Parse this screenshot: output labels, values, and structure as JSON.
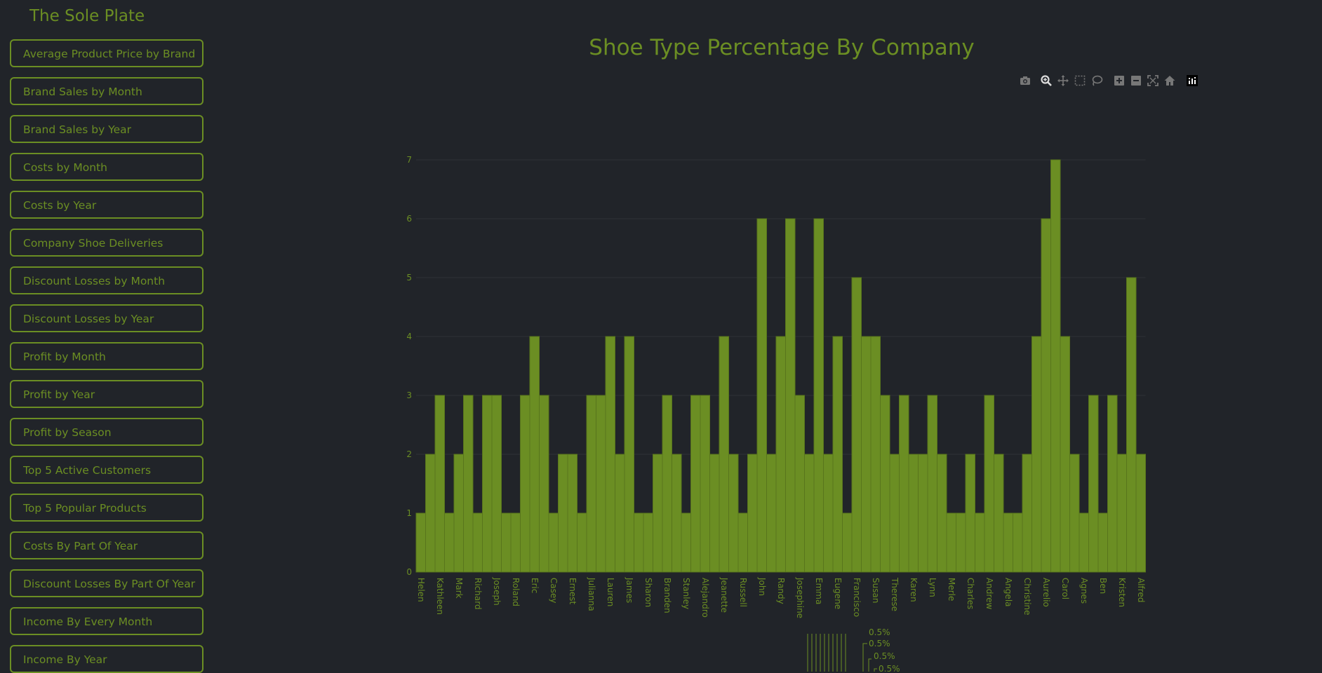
{
  "sidebar": {
    "brand": "The Sole Plate",
    "items": [
      "Average Product Price by Brand",
      "Brand Sales by Month",
      "Brand Sales by Year",
      "Costs by Month",
      "Costs by Year",
      "Company Shoe Deliveries",
      "Discount Losses by Month",
      "Discount Losses by Year",
      "Profit by Month",
      "Profit by Year",
      "Profit by Season",
      "Top 5 Active Customers",
      "Top 5 Popular Products",
      "Costs By Part Of Year",
      "Discount Losses By Part Of Year",
      "Income By Every Month",
      "Income By Year"
    ]
  },
  "main": {
    "title": "Shoe Type Percentage By Company"
  },
  "toolbar": {
    "icons": [
      "camera-icon",
      "zoom-icon",
      "pan-icon",
      "box-select-icon",
      "lasso-select-icon",
      "zoom-in-icon",
      "zoom-out-icon",
      "autoscale-icon",
      "reset-axes-icon",
      "plotly-logo-icon"
    ]
  },
  "colors": {
    "accent": "#6b8e23",
    "background": "#212429"
  },
  "chart_data": {
    "type": "bar",
    "ylim": [
      0,
      7
    ],
    "yticks": [
      0,
      1,
      2,
      3,
      4,
      5,
      6,
      7
    ],
    "grid": true,
    "values": [
      1,
      2,
      3,
      1,
      2,
      3,
      1,
      3,
      3,
      1,
      1,
      3,
      4,
      3,
      1,
      2,
      2,
      1,
      3,
      3,
      4,
      2,
      4,
      1,
      1,
      2,
      3,
      2,
      1,
      3,
      3,
      2,
      4,
      2,
      1,
      2,
      6,
      2,
      4,
      6,
      3,
      2,
      6,
      2,
      4,
      1,
      5,
      4,
      4,
      3,
      2,
      3,
      2,
      2,
      3,
      2,
      1,
      1,
      2,
      1,
      3,
      2,
      1,
      1,
      2,
      4,
      6,
      7,
      4,
      2,
      1,
      3,
      1,
      3,
      2,
      5,
      2
    ],
    "xtick_labels": [
      "Helen",
      "Kathleen",
      "Mark",
      "Richard",
      "Joseph",
      "Roland",
      "Eric",
      "Casey",
      "Ernest",
      "Julianna",
      "Lauren",
      "James",
      "Sharon",
      "Branden",
      "Stanley",
      "Alejandro",
      "Jeanette",
      "Russell",
      "John",
      "Randy",
      "Josephine",
      "Emma",
      "Eugene",
      "Francisco",
      "Susan",
      "Therese",
      "Karen",
      "Lynn",
      "Merle",
      "Charles",
      "Andrew",
      "Angela",
      "Christine",
      "Aurelio",
      "Carol",
      "Agnes",
      "Ben",
      "Kristen",
      "Alfred"
    ]
  },
  "pie_labels": [
    "0.5%",
    "0.5%",
    "0.5%",
    "0.5%"
  ]
}
